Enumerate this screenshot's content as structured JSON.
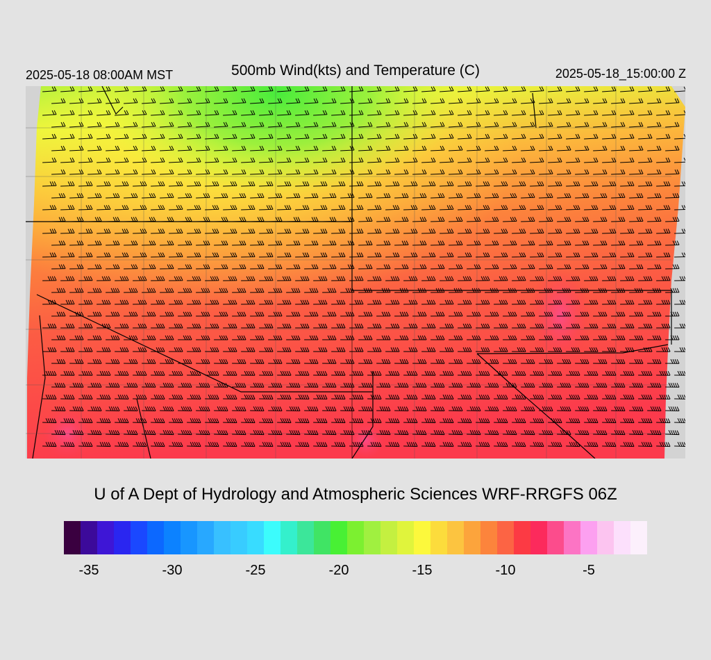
{
  "header": {
    "local_time": "2025-05-18 08:00AM MST",
    "title": "500mb Wind(kts) and Temperature (C)",
    "valid_time": "2025-05-18_15:00:00 Z"
  },
  "credit": "U of A Dept of Hydrology and Atmospheric Sciences WRF-RRGFS 06Z",
  "colorbar": {
    "min": -36,
    "step": 1,
    "colors": [
      "#3a0040",
      "#3c0a9a",
      "#3e16d6",
      "#2a26f0",
      "#1a48ff",
      "#0c68ff",
      "#0c82ff",
      "#1896ff",
      "#28a8ff",
      "#38c0ff",
      "#38ccff",
      "#38dcff",
      "#3cfcfc",
      "#34f0cc",
      "#3ce69a",
      "#40e464",
      "#48f034",
      "#7cf030",
      "#a0f040",
      "#c4f040",
      "#e0f43c",
      "#fcf83c",
      "#fcdc3c",
      "#fcc440",
      "#fca43c",
      "#fc843c",
      "#fc6444",
      "#fc3a44",
      "#fc2a5c",
      "#fc4c8c",
      "#fc74c4",
      "#fca0f0",
      "#fcc4f0",
      "#fce0fc",
      "#fcf0fc"
    ],
    "tick_labels": [
      {
        "value": -35,
        "label": "-35"
      },
      {
        "value": -30,
        "label": "-30"
      },
      {
        "value": -25,
        "label": "-25"
      },
      {
        "value": -20,
        "label": "-20"
      },
      {
        "value": -15,
        "label": "-15"
      },
      {
        "value": -10,
        "label": "-10"
      },
      {
        "value": -5,
        "label": "-5"
      }
    ]
  },
  "map": {
    "variable": "500mb temperature (C) with wind barbs (kts)",
    "temperature_range": [
      -19,
      -7
    ],
    "coldest_region": "north-central (green, about -19 C)",
    "warmest_region": "south and along the Rockies (red to pink, about -8 C)",
    "missing_data_color": "#d0d0d0"
  }
}
